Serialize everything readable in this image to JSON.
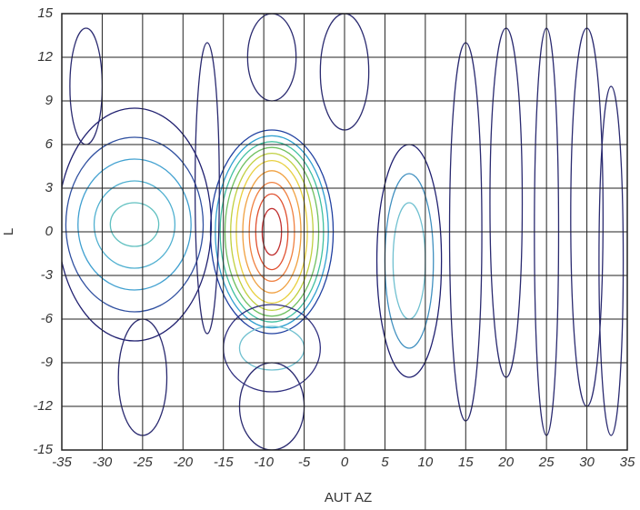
{
  "chart_data": {
    "type": "contour",
    "x_label": "AUT AZ",
    "y_label": "L",
    "xlim": [
      -35,
      35
    ],
    "ylim": [
      -15,
      15
    ],
    "xticks": [
      -35,
      -30,
      -25,
      -20,
      -15,
      -10,
      -5,
      0,
      5,
      10,
      15,
      20,
      25,
      30,
      35
    ],
    "yticks": [
      -15,
      -12,
      -9,
      -6,
      -3,
      0,
      3,
      6,
      9,
      12,
      15
    ],
    "grid": true,
    "contours": [
      {
        "cx": -9,
        "cy": 0,
        "rx": 1.2,
        "ry": 1.6,
        "color": "#c03030"
      },
      {
        "cx": -9,
        "cy": 0,
        "rx": 2,
        "ry": 2.6,
        "color": "#e05030"
      },
      {
        "cx": -9,
        "cy": 0,
        "rx": 2.8,
        "ry": 3.4,
        "color": "#f08040"
      },
      {
        "cx": -9,
        "cy": 0,
        "rx": 3.6,
        "ry": 4.2,
        "color": "#f0a040"
      },
      {
        "cx": -9,
        "cy": 0,
        "rx": 4.4,
        "ry": 4.9,
        "color": "#e8d040"
      },
      {
        "cx": -9,
        "cy": 0,
        "rx": 5.1,
        "ry": 5.4,
        "color": "#c0d040"
      },
      {
        "cx": -9,
        "cy": 0,
        "rx": 5.8,
        "ry": 5.8,
        "color": "#70c060"
      },
      {
        "cx": -9,
        "cy": 0,
        "rx": 6.4,
        "ry": 6.2,
        "color": "#40c0a0"
      },
      {
        "cx": -9,
        "cy": 0,
        "rx": 7,
        "ry": 6.6,
        "color": "#30a0d0"
      },
      {
        "cx": -9,
        "cy": 0,
        "rx": 7.6,
        "ry": 7,
        "color": "#2040a0"
      },
      {
        "cx": -26,
        "cy": 0.5,
        "rx": 3,
        "ry": 1.5,
        "color": "#60c0c0"
      },
      {
        "cx": -26,
        "cy": 0.5,
        "rx": 5,
        "ry": 3,
        "color": "#50b0d0"
      },
      {
        "cx": -26,
        "cy": 0.5,
        "rx": 7,
        "ry": 4.5,
        "color": "#40a0d0"
      },
      {
        "cx": -26,
        "cy": 0.5,
        "rx": 8.5,
        "ry": 6,
        "color": "#3050a0"
      },
      {
        "cx": -26,
        "cy": 0.5,
        "rx": 9.5,
        "ry": 8,
        "color": "#202070"
      },
      {
        "cx": 8,
        "cy": -2,
        "rx": 2,
        "ry": 4,
        "color": "#70c0d0"
      },
      {
        "cx": 8,
        "cy": -2,
        "rx": 3,
        "ry": 6,
        "color": "#4090c0"
      },
      {
        "cx": 8,
        "cy": -2,
        "rx": 4,
        "ry": 8,
        "color": "#202070"
      },
      {
        "cx": -9,
        "cy": -8,
        "rx": 4,
        "ry": 1.5,
        "color": "#70c0d0"
      },
      {
        "cx": -9,
        "cy": -8,
        "rx": 6,
        "ry": 3,
        "color": "#303080"
      },
      {
        "cx": 15,
        "cy": 0,
        "rx": 2,
        "ry": 13,
        "color": "#2a2a70"
      },
      {
        "cx": 20,
        "cy": 2,
        "rx": 2,
        "ry": 12,
        "color": "#2a2a70"
      },
      {
        "cx": 25,
        "cy": 0,
        "rx": 1.5,
        "ry": 14,
        "color": "#2a2a70"
      },
      {
        "cx": 30,
        "cy": 1,
        "rx": 2,
        "ry": 13,
        "color": "#2a2a70"
      },
      {
        "cx": 33,
        "cy": -2,
        "rx": 1.5,
        "ry": 12,
        "color": "#2a2a70"
      },
      {
        "cx": -17,
        "cy": 3,
        "rx": 1.5,
        "ry": 10,
        "color": "#2a2a70"
      },
      {
        "cx": -32,
        "cy": 10,
        "rx": 2,
        "ry": 4,
        "color": "#2a2a70"
      },
      {
        "cx": -9,
        "cy": 12,
        "rx": 3,
        "ry": 3,
        "color": "#2a2a70"
      },
      {
        "cx": -9,
        "cy": -12,
        "rx": 4,
        "ry": 3,
        "color": "#2a2a70"
      },
      {
        "cx": -25,
        "cy": -10,
        "rx": 3,
        "ry": 4,
        "color": "#2a2a70"
      },
      {
        "cx": 0,
        "cy": 11,
        "rx": 3,
        "ry": 4,
        "color": "#2a2a70"
      }
    ]
  }
}
